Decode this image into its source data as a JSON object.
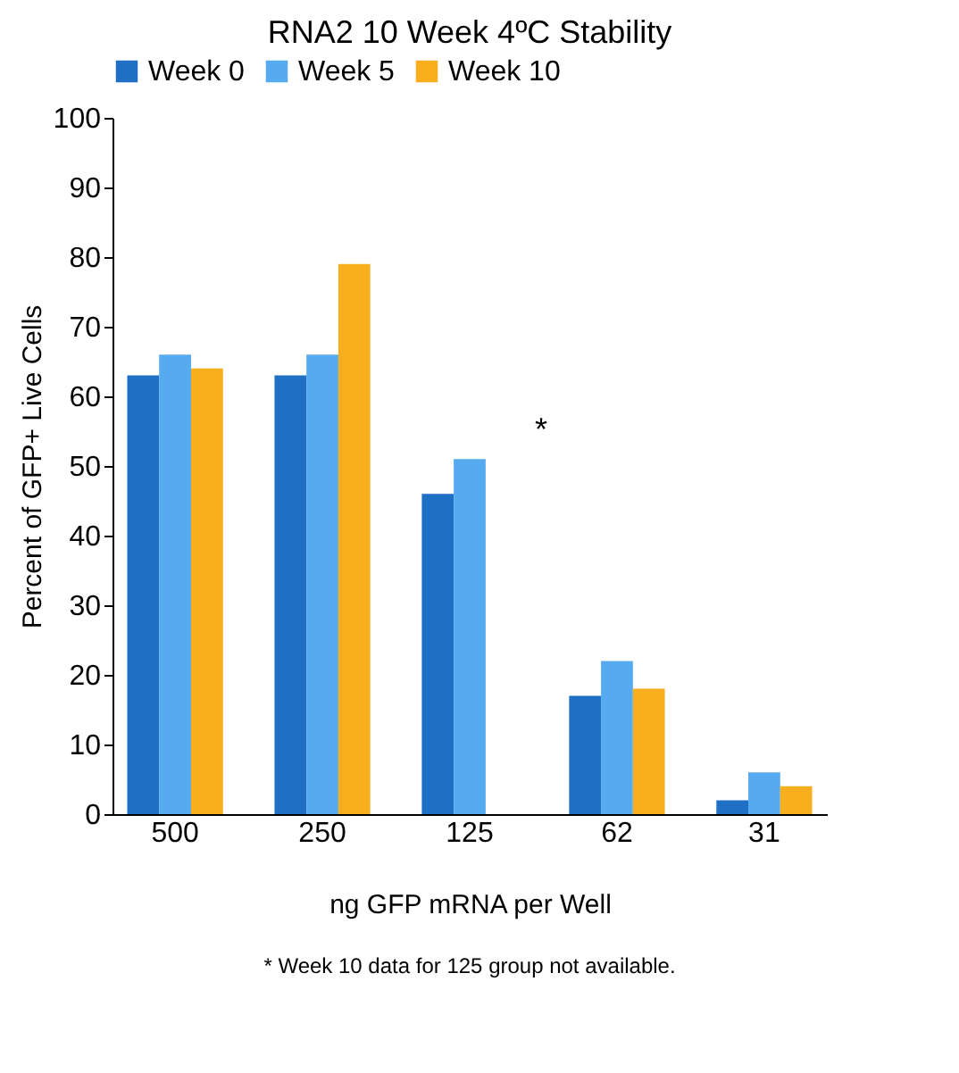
{
  "chart_data": {
    "type": "bar",
    "title": "RNA2 10 Week 4ºC Stability",
    "categories": [
      "500",
      "250",
      "125",
      "62",
      "31"
    ],
    "series": [
      {
        "name": "Week 0",
        "color": "#1f6fc5",
        "values": [
          63,
          63,
          46,
          17,
          2
        ]
      },
      {
        "name": "Week 5",
        "color": "#56aaf0",
        "values": [
          66,
          66,
          51,
          22,
          6
        ]
      },
      {
        "name": "Week 10",
        "color": "#f9ae1d",
        "values": [
          64,
          79,
          null,
          18,
          4
        ]
      }
    ],
    "xlabel": "ng GFP mRNA per Well",
    "ylabel": "Percent of GFP+ Live Cells",
    "ylim": [
      0,
      100
    ],
    "yticks": [
      0,
      10,
      20,
      30,
      40,
      50,
      60,
      70,
      80,
      90,
      100
    ],
    "grid": false,
    "legend": "top",
    "annotations": [
      "*",
      "* Week 10 data for 125 group not available."
    ]
  }
}
